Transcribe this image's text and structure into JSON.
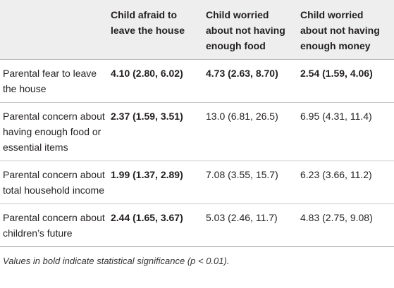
{
  "table": {
    "header": [
      "Child afraid to leave the house",
      "Child worried about not having enough food",
      "Child worried about not having enough money"
    ],
    "rows": [
      [
        "Parental fear to leave the house",
        "4.10 (2.80, 6.02)",
        "4.73 (2.63, 8.70)",
        "2.54 (1.59, 4.06)"
      ],
      [
        "Parental concern about having enough food or essential items",
        "2.37 (1.59, 3.51)",
        "13.0 (6.81, 26.5)",
        "6.95 (4.31, 11.4)"
      ],
      [
        "Parental concern about total household income",
        "1.99 (1.37, 2.89)",
        "7.08 (3.55, 15.7)",
        "6.23 (3.66, 11.2)"
      ],
      [
        "Parental concern about children’s future",
        "2.44 (1.65, 3.67)",
        "5.03 (2.46, 11.7)",
        "4.83 (2.75, 9.08)"
      ]
    ]
  },
  "footnote": "Values in bold indicate statistical significance (p < 0.01)."
}
